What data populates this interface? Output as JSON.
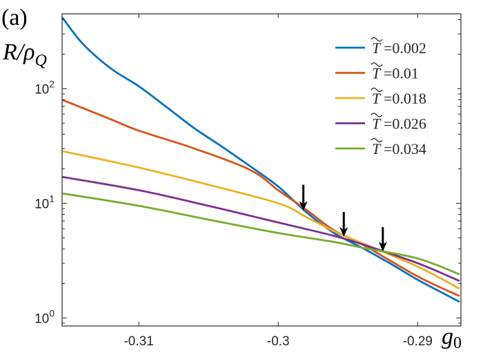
{
  "panel_label": "(a)",
  "chart_data": {
    "type": "line",
    "xlabel_main": "g",
    "xlabel_sub": "0",
    "ylabel_main": "R/ρ",
    "ylabel_sub": "Q",
    "xlim": [
      -0.3155,
      -0.2869
    ],
    "ylim": [
      0.85,
      450
    ],
    "yscale": "log",
    "x_ticks": [
      -0.31,
      -0.3,
      -0.29
    ],
    "x_tick_labels": [
      "-0.31",
      "-0.3",
      "-0.29"
    ],
    "y_ticks": [
      1,
      10,
      100
    ],
    "y_tick_labels": [
      {
        "base": "10",
        "exp": "0"
      },
      {
        "base": "10",
        "exp": "1"
      },
      {
        "base": "10",
        "exp": "2"
      }
    ],
    "grid": false,
    "legend_position": "top-right",
    "legend_symbol": "T",
    "series": [
      {
        "name": "=0.002",
        "color": "#0072BD",
        "x": [
          -0.3155,
          -0.314,
          -0.312,
          -0.31,
          -0.308,
          -0.306,
          -0.304,
          -0.302,
          -0.3,
          -0.298,
          -0.296,
          -0.294,
          -0.292,
          -0.29,
          -0.288,
          -0.287
        ],
        "y": [
          420,
          245,
          150,
          105,
          69,
          45,
          31,
          21,
          14,
          8.4,
          5.5,
          4.1,
          3.0,
          2.15,
          1.6,
          1.38
        ]
      },
      {
        "name": "=0.01",
        "color": "#D95319",
        "x": [
          -0.3155,
          -0.312,
          -0.31,
          -0.306,
          -0.302,
          -0.3,
          -0.298,
          -0.296,
          -0.294,
          -0.29,
          -0.287
        ],
        "y": [
          80,
          54,
          43,
          30,
          19.5,
          13,
          8.8,
          5.8,
          4.4,
          2.3,
          1.55
        ]
      },
      {
        "name": "=0.018",
        "color": "#EDB120",
        "x": [
          -0.3155,
          -0.31,
          -0.305,
          -0.3,
          -0.298,
          -0.296,
          -0.294,
          -0.29,
          -0.287
        ],
        "y": [
          28.5,
          20.5,
          14.5,
          10,
          7.6,
          5.7,
          4.5,
          2.8,
          1.8
        ]
      },
      {
        "name": "=0.026",
        "color": "#7E2F8E",
        "x": [
          -0.3155,
          -0.31,
          -0.305,
          -0.3,
          -0.296,
          -0.294,
          -0.29,
          -0.287
        ],
        "y": [
          17,
          13,
          9.5,
          6.8,
          5.2,
          4.4,
          3.0,
          2.1
        ]
      },
      {
        "name": "=0.034",
        "color": "#77AC30",
        "x": [
          -0.3155,
          -0.31,
          -0.305,
          -0.3,
          -0.296,
          -0.294,
          -0.29,
          -0.287
        ],
        "y": [
          12.2,
          9.5,
          7.2,
          5.5,
          4.6,
          4.1,
          3.3,
          2.4
        ]
      }
    ],
    "annotations": [
      {
        "type": "arrow",
        "x": -0.2982,
        "y_tip": 8.6,
        "y_tail": 14.5
      },
      {
        "type": "arrow",
        "x": -0.2953,
        "y_tip": 5.1,
        "y_tail": 8.4
      },
      {
        "type": "arrow",
        "x": -0.2925,
        "y_tip": 3.8,
        "y_tail": 6.2
      }
    ]
  }
}
